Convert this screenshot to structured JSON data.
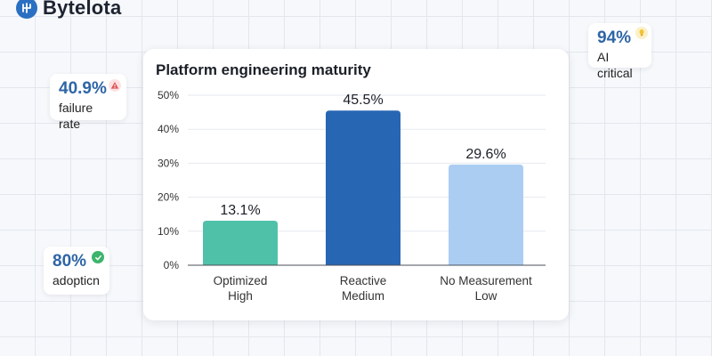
{
  "brand": {
    "name": "Bytelota",
    "logo_icon": "logo-icon"
  },
  "stats": [
    {
      "id": "failure",
      "value": "40.9%",
      "label": "failure rate",
      "badge_icon": "warning-icon",
      "badge_color": "#e05757"
    },
    {
      "id": "adoption",
      "value": "80%",
      "label": "adopticn",
      "badge_icon": "check-icon",
      "badge_color": "#3db46d"
    },
    {
      "id": "ai",
      "value": "94%",
      "label": "AI critical",
      "badge_icon": "lightbulb-icon",
      "badge_color": "#f2c230"
    }
  ],
  "colors": {
    "accent": "#2e65a6",
    "bar_high": "#4fc1a9",
    "bar_medium": "#2766b3",
    "bar_low": "#abcdf2"
  },
  "chart_data": {
    "type": "bar",
    "title": "Platform engineering maturity",
    "categories": [
      [
        "Optimized",
        "High"
      ],
      [
        "Reactive",
        "Medium"
      ],
      [
        "No Measurement",
        "Low"
      ]
    ],
    "values": [
      13.1,
      45.5,
      29.6
    ],
    "value_labels": [
      "13.1%",
      "45.5%",
      "29.6%"
    ],
    "bar_colors": [
      "#4fc1a9",
      "#2766b3",
      "#abcdf2"
    ],
    "xlabel": "",
    "ylabel": "",
    "ylim": [
      0,
      50
    ],
    "yticks": [
      0,
      10,
      20,
      30,
      40,
      50
    ],
    "ytick_labels": [
      "0%",
      "10%",
      "20%",
      "30%",
      "40%",
      "50%"
    ],
    "grid": true,
    "legend": "none"
  }
}
